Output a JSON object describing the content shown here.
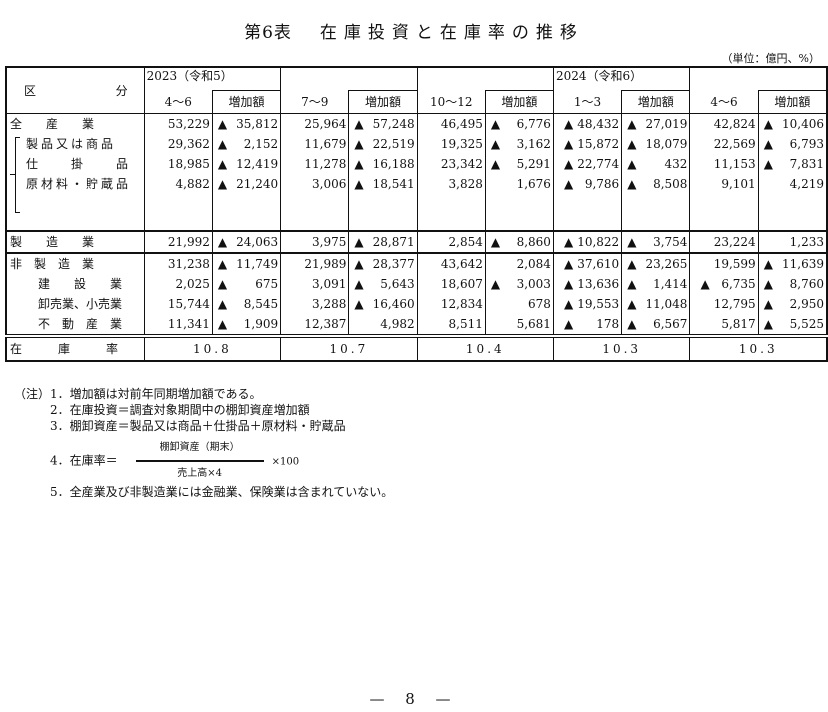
{
  "title": {
    "table_no": "第6表",
    "text": "在庫投資と在庫率の推移"
  },
  "unit": "（単位：億円、%）",
  "header": {
    "category": [
      "区",
      "分"
    ],
    "year1": "2023（令和5）",
    "year2": "2024（令和6）",
    "periods": [
      "4〜6",
      "7〜9",
      "10〜12",
      "1〜3",
      "4〜6"
    ],
    "increase": "増加額"
  },
  "rows": [
    {
      "label": "全　　産　　業",
      "cells": [
        [
          "",
          "53,229"
        ],
        [
          "▲",
          "35,812"
        ],
        [
          "",
          "25,964"
        ],
        [
          "▲",
          "57,248"
        ],
        [
          "",
          "46,495"
        ],
        [
          "▲",
          "6,776"
        ],
        [
          "▲",
          "48,432"
        ],
        [
          "▲",
          "27,019"
        ],
        [
          "",
          "42,824"
        ],
        [
          "▲",
          "10,406"
        ]
      ]
    },
    {
      "label": "製品又は商品",
      "sub": true,
      "cells": [
        [
          "",
          "29,362"
        ],
        [
          "▲",
          "2,152"
        ],
        [
          "",
          "11,679"
        ],
        [
          "▲",
          "22,519"
        ],
        [
          "",
          "19,325"
        ],
        [
          "▲",
          "3,162"
        ],
        [
          "▲",
          "15,872"
        ],
        [
          "▲",
          "18,079"
        ],
        [
          "",
          "22,569"
        ],
        [
          "▲",
          "6,793"
        ]
      ]
    },
    {
      "label": "仕　　掛　　品",
      "sub": true,
      "cells": [
        [
          "",
          "18,985"
        ],
        [
          "▲",
          "12,419"
        ],
        [
          "",
          "11,278"
        ],
        [
          "▲",
          "16,188"
        ],
        [
          "",
          "23,342"
        ],
        [
          "▲",
          "5,291"
        ],
        [
          "▲",
          "22,774"
        ],
        [
          "▲",
          "432"
        ],
        [
          "",
          "11,153"
        ],
        [
          "▲",
          "7,831"
        ]
      ]
    },
    {
      "label": "原材料・貯蔵品",
      "sub": true,
      "cells": [
        [
          "",
          "4,882"
        ],
        [
          "▲",
          "21,240"
        ],
        [
          "",
          "3,006"
        ],
        [
          "▲",
          "18,541"
        ],
        [
          "",
          "3,828"
        ],
        [
          "",
          "1,676"
        ],
        [
          "▲",
          "9,786"
        ],
        [
          "▲",
          "8,508"
        ],
        [
          "",
          "9,101"
        ],
        [
          "",
          "4,219"
        ]
      ]
    },
    {
      "label": "製　　造　　業",
      "cells": [
        [
          "",
          "21,992"
        ],
        [
          "▲",
          "24,063"
        ],
        [
          "",
          "3,975"
        ],
        [
          "▲",
          "28,871"
        ],
        [
          "",
          "2,854"
        ],
        [
          "▲",
          "8,860"
        ],
        [
          "▲",
          "10,822"
        ],
        [
          "▲",
          "3,754"
        ],
        [
          "",
          "23,224"
        ],
        [
          "",
          "1,233"
        ]
      ]
    },
    {
      "label": "非　製　造　業",
      "cells": [
        [
          "",
          "31,238"
        ],
        [
          "▲",
          "11,749"
        ],
        [
          "",
          "21,989"
        ],
        [
          "▲",
          "28,377"
        ],
        [
          "",
          "43,642"
        ],
        [
          "",
          "2,084"
        ],
        [
          "▲",
          "37,610"
        ],
        [
          "▲",
          "23,265"
        ],
        [
          "",
          "19,599"
        ],
        [
          "▲",
          "11,639"
        ]
      ]
    },
    {
      "label": "建　　設　　業",
      "ind": true,
      "cells": [
        [
          "",
          "2,025"
        ],
        [
          "▲",
          "675"
        ],
        [
          "",
          "3,091"
        ],
        [
          "▲",
          "5,643"
        ],
        [
          "",
          "18,607"
        ],
        [
          "▲",
          "3,003"
        ],
        [
          "▲",
          "13,636"
        ],
        [
          "▲",
          "1,414"
        ],
        [
          "▲",
          "6,735"
        ],
        [
          "▲",
          "8,760"
        ]
      ]
    },
    {
      "label": "卸売業、小売業",
      "ind": true,
      "cells": [
        [
          "",
          "15,744"
        ],
        [
          "▲",
          "8,545"
        ],
        [
          "",
          "3,288"
        ],
        [
          "▲",
          "16,460"
        ],
        [
          "",
          "12,834"
        ],
        [
          "",
          "678"
        ],
        [
          "▲",
          "19,553"
        ],
        [
          "▲",
          "11,048"
        ],
        [
          "",
          "12,795"
        ],
        [
          "▲",
          "2,950"
        ]
      ]
    },
    {
      "label": "不　動　産　業",
      "ind": true,
      "cells": [
        [
          "",
          "11,341"
        ],
        [
          "▲",
          "1,909"
        ],
        [
          "",
          "12,387"
        ],
        [
          "",
          "4,982"
        ],
        [
          "",
          "8,511"
        ],
        [
          "",
          "5,681"
        ],
        [
          "▲",
          "178"
        ],
        [
          "▲",
          "6,567"
        ],
        [
          "",
          "5,817"
        ],
        [
          "▲",
          "5,525"
        ]
      ]
    }
  ],
  "rate": {
    "label": "在　　　庫　　　率",
    "values": [
      "10.8",
      "10.7",
      "10.4",
      "10.3",
      "10.3"
    ]
  },
  "notes": {
    "lead": "（注）",
    "items": [
      "1．増加額は対前年同期増加額である。",
      "2．在庫投資＝調査対象期間中の棚卸資産増加額",
      "3．棚卸資産＝製品又は商品＋仕掛品＋原材料・貯蔵品"
    ],
    "item4": {
      "prefix": "4．在庫率＝",
      "numerator": "棚卸資産（期末）",
      "denominator": "売上高×4",
      "suffix": "×100"
    },
    "item5": "5．全産業及び非製造業には金融業、保険業は含まれていない。"
  },
  "page_number": "— 8 —"
}
